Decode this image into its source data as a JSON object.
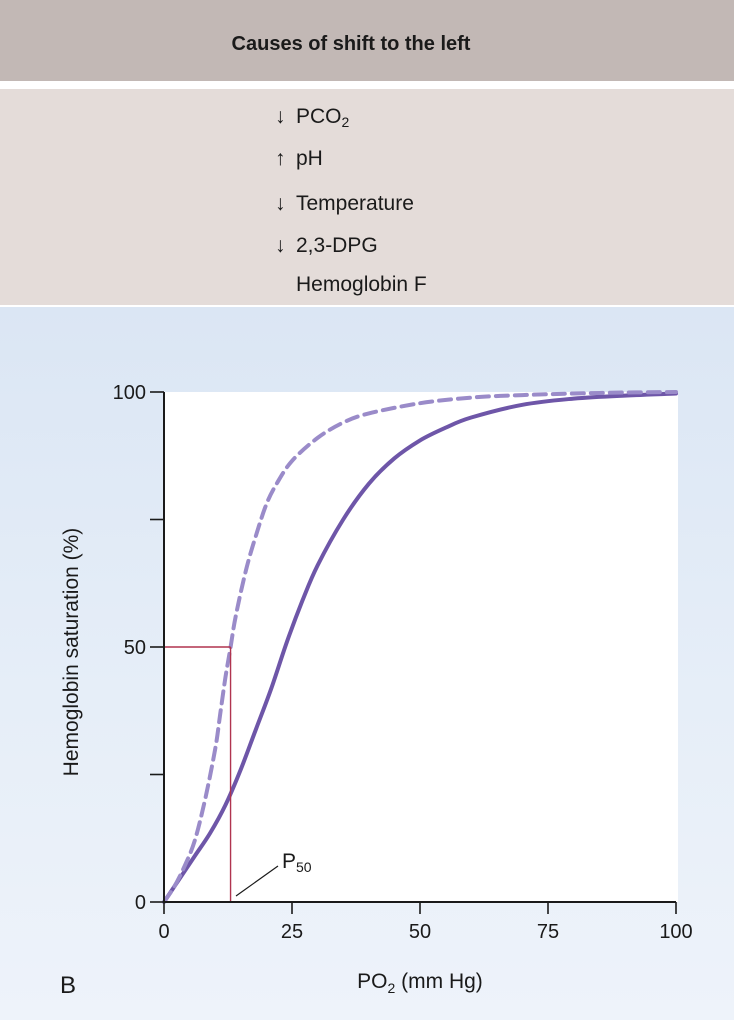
{
  "header": {
    "title": "Causes of shift to the left"
  },
  "causes": [
    {
      "arrow": "down",
      "symbol": "↓",
      "label": "PCO",
      "subscript": "2"
    },
    {
      "arrow": "up",
      "symbol": "↑",
      "label": "pH",
      "subscript": ""
    },
    {
      "arrow": "down",
      "symbol": "↓",
      "label": "Temperature",
      "subscript": ""
    },
    {
      "arrow": "down",
      "symbol": "↓",
      "label": "2,3-DPG",
      "subscript": ""
    },
    {
      "arrow": "none",
      "symbol": "",
      "label": "Hemoglobin F",
      "subscript": ""
    }
  ],
  "panel_label": "B",
  "chart_data": {
    "type": "line",
    "xlabel": "PO2 (mm Hg)",
    "xlabel_main": "PO",
    "xlabel_sub": "2",
    "xlabel_tail": " (mm Hg)",
    "ylabel": "Hemoglobin saturation (%)",
    "xlim": [
      0,
      100
    ],
    "ylim": [
      0,
      100
    ],
    "x_ticks": [
      0,
      25,
      50,
      75,
      100
    ],
    "y_ticks": [
      0,
      50,
      100
    ],
    "y_minor_ticks": [
      25,
      75
    ],
    "grid": false,
    "series": [
      {
        "style": "solid",
        "color": "#6e56a8",
        "x": [
          0,
          3,
          6,
          9,
          12,
          15,
          18,
          21,
          24,
          27,
          30,
          35,
          40,
          45,
          50,
          55,
          60,
          70,
          80,
          90,
          100
        ],
        "y": [
          0,
          4.5,
          9,
          13.5,
          19,
          26,
          34,
          42,
          51,
          59,
          66,
          75,
          82,
          87,
          90.5,
          93,
          95,
          97.5,
          98.7,
          99.3,
          99.7
        ]
      },
      {
        "style": "dashed",
        "color": "#9a8bc9",
        "x": [
          0,
          2,
          4,
          6,
          8,
          10,
          11,
          12,
          13,
          14,
          16,
          18,
          20,
          22,
          25,
          30,
          35,
          40,
          50,
          60,
          70,
          80,
          90,
          100
        ],
        "y": [
          0,
          3,
          7,
          12,
          20,
          30,
          37,
          44,
          50,
          56,
          65,
          72,
          78,
          82,
          86.5,
          91,
          94,
          95.8,
          97.8,
          98.9,
          99.4,
          99.7,
          99.9,
          100
        ]
      }
    ],
    "p50_marker": {
      "x": 13,
      "y": 50,
      "color": "#b0344f"
    },
    "annotation": {
      "text": "P",
      "subscript": "50"
    }
  }
}
